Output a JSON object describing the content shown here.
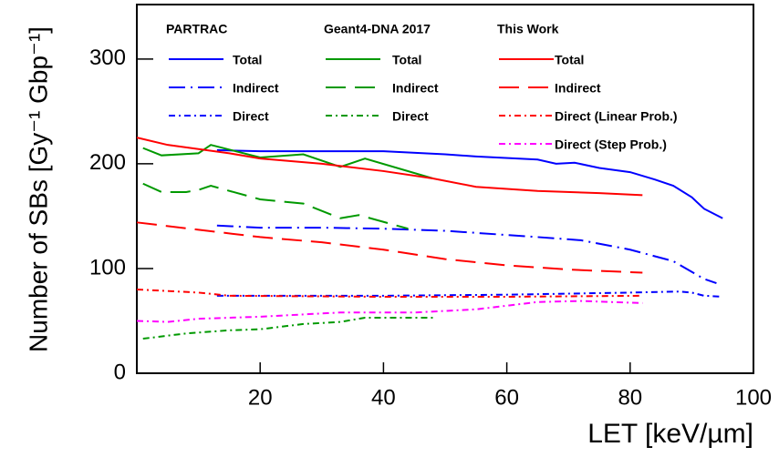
{
  "chart_data": {
    "type": "line",
    "xlabel": "LET [keV/µm]",
    "ylabel": "Number of SBs [Gy⁻¹ Gbp⁻¹]",
    "xlim": [
      0,
      100
    ],
    "xticks": [
      20,
      40,
      60,
      80,
      100
    ],
    "ylim": [
      0,
      352
    ],
    "yticks": [
      0,
      100,
      200,
      300
    ],
    "legend_groups": [
      "PARTRAC",
      "Geant4-DNA 2017",
      "This Work"
    ],
    "series": [
      {
        "name": "Total",
        "group": 0,
        "color": "#0000ff",
        "style": "solid",
        "x": [
          13,
          20,
          30,
          40,
          50,
          55,
          65,
          68,
          71,
          75,
          80,
          84,
          87,
          90,
          92,
          95
        ],
        "values": [
          213,
          212,
          212,
          212,
          209,
          207,
          204,
          200,
          201,
          196,
          192,
          185,
          179,
          168,
          157,
          148
        ]
      },
      {
        "name": "Indirect",
        "group": 0,
        "color": "#0000ff",
        "style": "longdashdot",
        "x": [
          13,
          20,
          30,
          40,
          50,
          55,
          65,
          72,
          80,
          87,
          92,
          94
        ],
        "values": [
          141,
          139,
          139,
          138,
          136,
          134,
          130,
          127,
          118,
          107,
          90,
          86
        ]
      },
      {
        "name": "Direct",
        "group": 0,
        "color": "#0000ff",
        "style": "dashdot",
        "x": [
          13,
          20,
          40,
          60,
          80,
          88,
          90,
          92,
          95
        ],
        "values": [
          74,
          74,
          74,
          75,
          77,
          78,
          77,
          74,
          73
        ]
      },
      {
        "name": "Total",
        "group": 1,
        "color": "#009900",
        "style": "solid",
        "x": [
          1,
          4,
          10,
          12,
          20,
          27,
          33,
          37,
          48
        ],
        "values": [
          215,
          208,
          210,
          218,
          206,
          209,
          197,
          205,
          186
        ]
      },
      {
        "name": "Indirect",
        "group": 1,
        "color": "#009900",
        "style": "dash",
        "x": [
          1,
          4,
          8,
          10,
          12,
          20,
          27,
          33,
          36,
          44
        ],
        "values": [
          181,
          173,
          173,
          175,
          179,
          166,
          162,
          148,
          151,
          138
        ]
      },
      {
        "name": "Direct",
        "group": 1,
        "color": "#009900",
        "style": "dashdot",
        "x": [
          1,
          8,
          15,
          20,
          27,
          33,
          37,
          48
        ],
        "values": [
          33,
          38,
          41,
          42,
          47,
          49,
          53,
          53
        ]
      },
      {
        "name": "Total",
        "group": 2,
        "color": "#ff0000",
        "style": "solid",
        "x": [
          0,
          5,
          10,
          15,
          20,
          30,
          40,
          48,
          55,
          65,
          75,
          82
        ],
        "values": [
          225,
          218,
          214,
          210,
          205,
          200,
          193,
          186,
          178,
          174,
          172,
          170
        ]
      },
      {
        "name": "Indirect",
        "group": 2,
        "color": "#ff0000",
        "style": "dash",
        "x": [
          0,
          10,
          20,
          30,
          40,
          50,
          60,
          70,
          82
        ],
        "values": [
          144,
          137,
          130,
          125,
          118,
          109,
          103,
          99,
          96
        ]
      },
      {
        "name": "Direct (Linear Prob.)",
        "group": 2,
        "color": "#ff0000",
        "style": "dashdot",
        "x": [
          0,
          10,
          15,
          40,
          60,
          82
        ],
        "values": [
          80,
          77,
          74,
          73,
          73,
          74
        ]
      },
      {
        "name": "Direct (Step Prob.)",
        "group": 2,
        "color": "#ff00ff",
        "style": "dashdot",
        "x": [
          0,
          5,
          10,
          20,
          33,
          45,
          55,
          65,
          72,
          82
        ],
        "values": [
          50,
          49,
          52,
          54,
          58,
          58,
          61,
          68,
          69,
          67
        ]
      }
    ]
  }
}
